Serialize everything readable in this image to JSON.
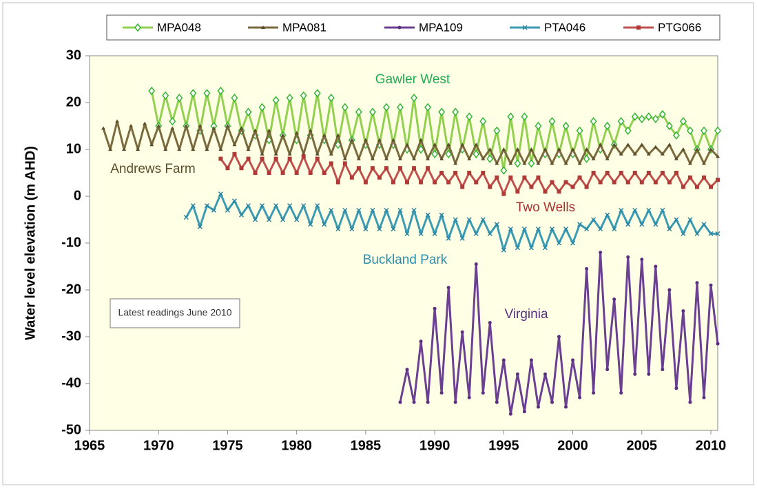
{
  "chart_data": {
    "type": "line",
    "ylabel": "Water level elevation (m AHD)",
    "xlim": [
      1965,
      2010.8
    ],
    "xticks": [
      1965,
      1970,
      1975,
      1980,
      1985,
      1990,
      1995,
      2000,
      2005,
      2010
    ],
    "ylim": [
      -50,
      30
    ],
    "yticks": [
      -50,
      -40,
      -30,
      -20,
      -10,
      0,
      10,
      20,
      30
    ],
    "grid": false,
    "legend": "top",
    "annotations": [
      "Gawler West",
      "Andrews Farm",
      "Two Wells",
      "Buckland Park",
      "Virginia"
    ],
    "note": "Latest readings June 2010",
    "series": [
      {
        "name": "MPA048",
        "color": "#92d050",
        "marker": "diamond",
        "marker_color": "#33b533",
        "x": [
          1969.5,
          1970,
          1970.5,
          1971,
          1971.5,
          1972,
          1972.5,
          1973,
          1973.5,
          1974,
          1974.5,
          1975,
          1975.5,
          1976,
          1976.5,
          1977,
          1977.5,
          1978,
          1978.5,
          1979,
          1979.5,
          1980,
          1980.5,
          1981,
          1981.5,
          1982,
          1982.5,
          1983,
          1983.5,
          1984,
          1984.5,
          1985,
          1985.5,
          1986,
          1986.5,
          1987,
          1987.5,
          1988,
          1988.5,
          1989,
          1989.5,
          1990,
          1990.5,
          1991,
          1991.5,
          1992,
          1992.5,
          1993,
          1993.5,
          1994,
          1994.5,
          1995,
          1995.5,
          1996,
          1996.5,
          1997,
          1997.5,
          1998,
          1998.5,
          1999,
          1999.5,
          2000,
          2000.5,
          2001,
          2001.5,
          2002,
          2002.5,
          2003,
          2003.5,
          2004,
          2004.5,
          2005,
          2005.5,
          2006,
          2006.5,
          2007,
          2007.5,
          2008,
          2008.5,
          2009,
          2009.5,
          2010,
          2010.5
        ],
        "values": [
          22.5,
          15,
          21.5,
          16,
          21,
          15,
          22,
          14,
          22,
          15,
          22.5,
          15,
          21,
          14,
          18,
          13,
          19,
          12,
          20.5,
          13,
          21,
          12,
          21.5,
          13,
          22,
          12,
          21,
          11,
          19,
          12,
          18,
          11,
          18,
          11,
          19,
          11,
          19,
          10,
          21,
          10,
          19,
          9,
          18,
          9,
          18,
          10,
          17,
          9,
          16,
          8,
          14,
          5.5,
          17,
          7,
          17,
          7,
          15,
          9,
          16,
          9,
          15,
          9,
          14,
          8,
          16,
          10,
          15,
          11,
          16,
          14,
          17,
          16.5,
          17,
          16.5,
          17.5,
          15,
          13,
          16,
          14,
          10,
          14,
          10,
          14
        ]
      },
      {
        "name": "MPA081",
        "color": "#7b6a3e",
        "marker": "triangle",
        "marker_color": "#5c4e2a",
        "x": [
          1966,
          1966.5,
          1967,
          1967.5,
          1968,
          1968.5,
          1969,
          1969.5,
          1970,
          1970.5,
          1971,
          1971.5,
          1972,
          1972.5,
          1973,
          1973.5,
          1974,
          1974.5,
          1975,
          1975.5,
          1976,
          1976.5,
          1977,
          1977.5,
          1978,
          1978.5,
          1979,
          1979.5,
          1980,
          1980.5,
          1981,
          1981.5,
          1982,
          1982.5,
          1983,
          1983.5,
          1984,
          1984.5,
          1985,
          1985.5,
          1986,
          1986.5,
          1987,
          1987.5,
          1988,
          1988.5,
          1989,
          1989.5,
          1990,
          1990.5,
          1991,
          1991.5,
          1992,
          1992.5,
          1993,
          1993.5,
          1994,
          1994.5,
          1995,
          1995.5,
          1996,
          1996.5,
          1997,
          1997.5,
          1998,
          1998.5,
          1999,
          1999.5,
          2000,
          2000.5,
          2001,
          2001.5,
          2002,
          2002.5,
          2003,
          2003.5,
          2004,
          2004.5,
          2005,
          2005.5,
          2006,
          2006.5,
          2007,
          2007.5,
          2008,
          2008.5,
          2009,
          2009.5,
          2010,
          2010.5
        ],
        "values": [
          14.5,
          10,
          16,
          10,
          15,
          10,
          15.5,
          11,
          15,
          10,
          14.5,
          10,
          15,
          10,
          15,
          10,
          14.5,
          10,
          15,
          11,
          14.5,
          10,
          14,
          9,
          14,
          9,
          13,
          9,
          13.5,
          9,
          14,
          9,
          13,
          9,
          13,
          8,
          12,
          8,
          12,
          8,
          12,
          8,
          12,
          8,
          11,
          8,
          12,
          8,
          11,
          8,
          11,
          7,
          11,
          8,
          11,
          8,
          10,
          7,
          10,
          7,
          10,
          7,
          10,
          7,
          10,
          7,
          10,
          7,
          10,
          7,
          10,
          8,
          11,
          8,
          11,
          9,
          11,
          9,
          11,
          9,
          10.5,
          9,
          11,
          8,
          10,
          7,
          10,
          7,
          10,
          8.5
        ]
      },
      {
        "name": "MPA109",
        "color": "#6b3f91",
        "marker": "circle",
        "marker_color": "#5a2f80",
        "x": [
          1987.5,
          1988,
          1988.5,
          1989,
          1989.5,
          1990,
          1990.5,
          1991,
          1991.5,
          1992,
          1992.5,
          1993,
          1993.5,
          1994,
          1994.5,
          1995,
          1995.5,
          1996,
          1996.5,
          1997,
          1997.5,
          1998,
          1998.5,
          1999,
          1999.5,
          2000,
          2000.5,
          2001,
          2001.5,
          2002,
          2002.5,
          2003,
          2003.5,
          2004,
          2004.5,
          2005,
          2005.5,
          2006,
          2006.5,
          2007,
          2007.5,
          2008,
          2008.5,
          2009,
          2009.5,
          2010,
          2010.5
        ],
        "values": [
          -44,
          -37,
          -44,
          -31,
          -44,
          -24,
          -42,
          -19.5,
          -44,
          -29,
          -43,
          -14.5,
          -42,
          -27,
          -44,
          -35,
          -46.5,
          -38,
          -46,
          -35,
          -45,
          -38,
          -44,
          -30,
          -45,
          -35,
          -43,
          -15.5,
          -42,
          -12,
          -37,
          -22,
          -42,
          -13,
          -38,
          -13.5,
          -38,
          -15,
          -37,
          -20,
          -41,
          -24.5,
          -44,
          -18.5,
          -43,
          -19,
          -31.5
        ]
      },
      {
        "name": "PTA046",
        "color": "#3a9bb3",
        "marker": "cross",
        "marker_color": "#2b85a0",
        "x": [
          1972,
          1972.5,
          1973,
          1973.5,
          1974,
          1974.5,
          1975,
          1975.5,
          1976,
          1976.5,
          1977,
          1977.5,
          1978,
          1978.5,
          1979,
          1979.5,
          1980,
          1980.5,
          1981,
          1981.5,
          1982,
          1982.5,
          1983,
          1983.5,
          1984,
          1984.5,
          1985,
          1985.5,
          1986,
          1986.5,
          1987,
          1987.5,
          1988,
          1988.5,
          1989,
          1989.5,
          1990,
          1990.5,
          1991,
          1991.5,
          1992,
          1992.5,
          1993,
          1993.5,
          1994,
          1994.5,
          1995,
          1995.5,
          1996,
          1996.5,
          1997,
          1997.5,
          1998,
          1998.5,
          1999,
          1999.5,
          2000,
          2000.5,
          2001,
          2001.5,
          2002,
          2002.5,
          2003,
          2003.5,
          2004,
          2004.5,
          2005,
          2005.5,
          2006,
          2006.5,
          2007,
          2007.5,
          2008,
          2008.5,
          2009,
          2009.5,
          2010,
          2010.5
        ],
        "values": [
          -4.5,
          -2,
          -6.5,
          -2,
          -3,
          0.5,
          -3,
          -1,
          -4,
          -2,
          -5,
          -2,
          -5,
          -2,
          -5,
          -2,
          -5,
          -2,
          -6,
          -2,
          -6,
          -3,
          -7,
          -3,
          -7,
          -3,
          -7,
          -3,
          -7,
          -3,
          -7,
          -3,
          -8,
          -3,
          -8,
          -4,
          -8,
          -4,
          -9,
          -5,
          -9,
          -5,
          -8,
          -5,
          -8,
          -6,
          -11.5,
          -7,
          -11,
          -7,
          -11,
          -7,
          -11,
          -7,
          -10,
          -7,
          -10,
          -6,
          -7,
          -5,
          -7,
          -4,
          -7,
          -3,
          -6,
          -3,
          -6,
          -3,
          -6,
          -3,
          -7,
          -5,
          -8,
          -5,
          -8,
          -6,
          -8,
          -8
        ]
      },
      {
        "name": "PTG066",
        "color": "#c0504d",
        "marker": "square",
        "marker_color": "#b03a37",
        "x": [
          1974.5,
          1975,
          1975.5,
          1976,
          1976.5,
          1977,
          1977.5,
          1978,
          1978.5,
          1979,
          1979.5,
          1980,
          1980.5,
          1981,
          1981.5,
          1982,
          1982.5,
          1983,
          1983.5,
          1984,
          1984.5,
          1985,
          1985.5,
          1986,
          1986.5,
          1987,
          1987.5,
          1988,
          1988.5,
          1989,
          1989.5,
          1990,
          1990.5,
          1991,
          1991.5,
          1992,
          1992.5,
          1993,
          1993.5,
          1994,
          1994.5,
          1995,
          1995.5,
          1996,
          1996.5,
          1997,
          1997.5,
          1998,
          1998.5,
          1999,
          1999.5,
          2000,
          2000.5,
          2001,
          2001.5,
          2002,
          2002.5,
          2003,
          2003.5,
          2004,
          2004.5,
          2005,
          2005.5,
          2006,
          2006.5,
          2007,
          2007.5,
          2008,
          2008.5,
          2009,
          2009.5,
          2010,
          2010.5
        ],
        "values": [
          8,
          6,
          9,
          6,
          8,
          5,
          8,
          5,
          8,
          5,
          8,
          5,
          8.5,
          5,
          8,
          5,
          7,
          3,
          7,
          4,
          6,
          3,
          6,
          4,
          6,
          3,
          6,
          3,
          6,
          3,
          6,
          3,
          5,
          3,
          5,
          2,
          5,
          3,
          5,
          2,
          4,
          0.5,
          4,
          1,
          4,
          2,
          4,
          1,
          3,
          1,
          3,
          2,
          4,
          2,
          5,
          3,
          5,
          3,
          5,
          3,
          5,
          3,
          5,
          3,
          5,
          3,
          5,
          2,
          4,
          2,
          4,
          2,
          3.5
        ]
      }
    ]
  }
}
